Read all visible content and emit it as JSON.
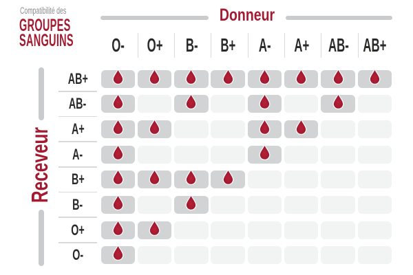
{
  "title": {
    "subtitle": "Compatibilité des",
    "line1": "GROUPES",
    "line2": "SANGUINS"
  },
  "axes": {
    "donor_label": "Donneur",
    "receiver_label": "Receveur"
  },
  "icons": {
    "compatible_marker": "blood-drop-icon"
  },
  "colors": {
    "accent_red": "#a21b31",
    "drop_highlight": "#b92038",
    "title_gray": "#8b8d90",
    "label_dark": "#2b2a29",
    "cell_filled": "#d2d3d5",
    "cell_empty": "#f2f3f3",
    "axis_bar_gray": "#c9cbcd",
    "divider_gray": "#d8d9da",
    "background": "#ffffff"
  },
  "chart_data": {
    "type": "heatmap",
    "title": "Compatibilité des GROUPES SANGUINS",
    "x_axis_label": "Donneur",
    "y_axis_label": "Receveur",
    "columns": [
      "O-",
      "O+",
      "B-",
      "B+",
      "A-",
      "A+",
      "AB-",
      "AB+"
    ],
    "rows": [
      "AB+",
      "AB-",
      "A+",
      "A-",
      "B+",
      "B-",
      "O+",
      "O-"
    ],
    "values": [
      [
        1,
        1,
        1,
        1,
        1,
        1,
        1,
        1
      ],
      [
        1,
        0,
        1,
        0,
        1,
        0,
        1,
        0
      ],
      [
        1,
        1,
        0,
        0,
        1,
        1,
        0,
        0
      ],
      [
        1,
        0,
        0,
        0,
        1,
        0,
        0,
        0
      ],
      [
        1,
        1,
        1,
        1,
        0,
        0,
        0,
        0
      ],
      [
        1,
        0,
        1,
        0,
        0,
        0,
        0,
        0
      ],
      [
        1,
        1,
        0,
        0,
        0,
        0,
        0,
        0
      ],
      [
        1,
        0,
        0,
        0,
        0,
        0,
        0,
        0
      ]
    ],
    "value_meaning": "1 = compatible (blood drop shown), 0 = not compatible (empty cell)",
    "legend": "none",
    "grid": "off"
  }
}
